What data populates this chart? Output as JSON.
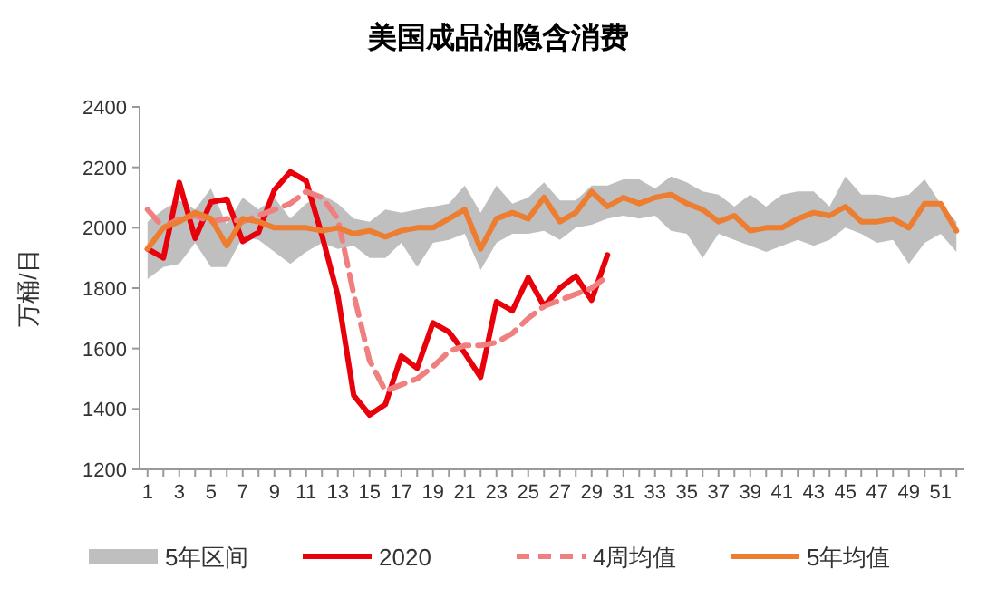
{
  "chart_data": {
    "type": "line",
    "title": "美国成品油隐含消费",
    "ylabel": "万桶/日",
    "x": [
      1,
      2,
      3,
      4,
      5,
      6,
      7,
      8,
      9,
      10,
      11,
      12,
      13,
      14,
      15,
      16,
      17,
      18,
      19,
      20,
      21,
      22,
      23,
      24,
      25,
      26,
      27,
      28,
      29,
      30,
      31,
      32,
      33,
      34,
      35,
      36,
      37,
      38,
      39,
      40,
      41,
      42,
      43,
      44,
      45,
      46,
      47,
      48,
      49,
      50,
      51,
      52
    ],
    "xlim": [
      0.5,
      52.5
    ],
    "xticks": [
      1,
      {
        "value": 2,
        "label": null
      },
      3,
      {
        "value": 4,
        "label": null
      },
      5,
      {
        "value": 6,
        "label": null
      },
      7,
      {
        "value": 8,
        "label": null
      },
      9,
      {
        "value": 10,
        "label": null
      },
      11,
      {
        "value": 12,
        "label": null
      },
      13,
      {
        "value": 14,
        "label": null
      },
      15,
      {
        "value": 16,
        "label": null
      },
      17,
      {
        "value": 18,
        "label": null
      },
      19,
      {
        "value": 20,
        "label": null
      },
      21,
      {
        "value": 22,
        "label": null
      },
      23,
      {
        "value": 24,
        "label": null
      },
      25,
      {
        "value": 26,
        "label": null
      },
      27,
      {
        "value": 28,
        "label": null
      },
      29,
      {
        "value": 30,
        "label": null
      },
      31,
      {
        "value": 32,
        "label": null
      },
      33,
      {
        "value": 34,
        "label": null
      },
      35,
      {
        "value": 36,
        "label": null
      },
      37,
      {
        "value": 38,
        "label": null
      },
      39,
      {
        "value": 40,
        "label": null
      },
      41,
      {
        "value": 42,
        "label": null
      },
      43,
      {
        "value": 44,
        "label": null
      },
      45,
      {
        "value": 46,
        "label": null
      },
      47,
      {
        "value": 48,
        "label": null
      },
      49,
      {
        "value": 50,
        "label": null
      },
      51,
      {
        "value": 52,
        "label": null
      }
    ],
    "ylim": [
      1200,
      2400
    ],
    "yticks": [
      1200,
      1400,
      1600,
      1800,
      2000,
      2200,
      2400
    ],
    "grid": false,
    "legend": "bottom",
    "series": [
      {
        "name": "5年区间",
        "type": "area",
        "color": "#bfbfbf",
        "values": [
          null,
          null,
          null,
          null,
          null,
          null,
          null,
          null,
          null,
          null,
          null,
          null,
          null,
          null,
          null,
          null,
          null,
          null,
          null,
          null,
          null,
          null,
          null,
          null,
          null,
          null,
          null,
          null,
          null,
          null,
          null,
          null,
          null,
          null,
          null,
          null,
          null,
          null,
          null,
          null,
          null,
          null,
          null,
          null,
          null,
          null,
          null,
          null,
          null,
          null,
          null,
          null
        ],
        "lower": [
          1830,
          1870,
          1880,
          1950,
          1870,
          1870,
          1970,
          1960,
          1920,
          1880,
          1920,
          1950,
          1930,
          1940,
          1900,
          1900,
          1950,
          1870,
          1950,
          1960,
          1980,
          1860,
          1950,
          1980,
          1980,
          1990,
          1960,
          2000,
          2010,
          2030,
          2040,
          2030,
          2040,
          1990,
          1980,
          1900,
          1980,
          1960,
          1940,
          1920,
          1940,
          1960,
          1940,
          1960,
          2000,
          1980,
          1950,
          1960,
          1880,
          1950,
          1980,
          1920
        ],
        "upper": [
          2020,
          2060,
          2090,
          2060,
          2130,
          2010,
          2100,
          2060,
          2100,
          2030,
          2080,
          2110,
          2080,
          2030,
          2020,
          2060,
          2050,
          2060,
          2070,
          2080,
          2140,
          2050,
          2140,
          2080,
          2100,
          2150,
          2090,
          2090,
          2140,
          2140,
          2160,
          2160,
          2130,
          2170,
          2150,
          2120,
          2110,
          2070,
          2110,
          2070,
          2110,
          2120,
          2120,
          2070,
          2170,
          2110,
          2110,
          2100,
          2110,
          2160,
          2080,
          2020
        ]
      },
      {
        "name": "2020",
        "color": "#e8000b",
        "line_style": "solid",
        "values": [
          1930,
          1900,
          2150,
          1965,
          2085,
          2095,
          1955,
          1985,
          2125,
          2185,
          2155,
          1975,
          1775,
          1445,
          1380,
          1415,
          1575,
          1535,
          1685,
          1655,
          1585,
          1505,
          1755,
          1725,
          1835,
          1740,
          1800,
          1840,
          1760,
          1910,
          null,
          null,
          null,
          null,
          null,
          null,
          null,
          null,
          null,
          null,
          null,
          null,
          null,
          null,
          null,
          null,
          null,
          null,
          null,
          null,
          null,
          null
        ]
      },
      {
        "name": "4周均值",
        "color": "#f08080",
        "line_style": "dashed",
        "values": [
          2060,
          2000,
          2030,
          2040,
          2020,
          2030,
          2020,
          2040,
          2060,
          2080,
          2120,
          2100,
          2030,
          1780,
          1560,
          1460,
          1480,
          1500,
          1540,
          1590,
          1610,
          1610,
          1620,
          1650,
          1700,
          1740,
          1760,
          1780,
          1800,
          1840,
          null,
          null,
          null,
          null,
          null,
          null,
          null,
          null,
          null,
          null,
          null,
          null,
          null,
          null,
          null,
          null,
          null,
          null,
          null,
          null,
          null,
          null
        ]
      },
      {
        "name": "5年均值",
        "color": "#ed7d31",
        "line_style": "solid",
        "values": [
          1930,
          2000,
          2020,
          2050,
          2030,
          1940,
          2030,
          2020,
          2000,
          2000,
          2000,
          1990,
          2000,
          1980,
          1990,
          1970,
          1990,
          2000,
          2000,
          2030,
          2060,
          1930,
          2030,
          2050,
          2030,
          2100,
          2020,
          2050,
          2120,
          2070,
          2100,
          2080,
          2100,
          2110,
          2080,
          2060,
          2020,
          2040,
          1990,
          2000,
          2000,
          2030,
          2050,
          2040,
          2070,
          2020,
          2020,
          2030,
          2000,
          2080,
          2080,
          1990
        ]
      }
    ]
  }
}
